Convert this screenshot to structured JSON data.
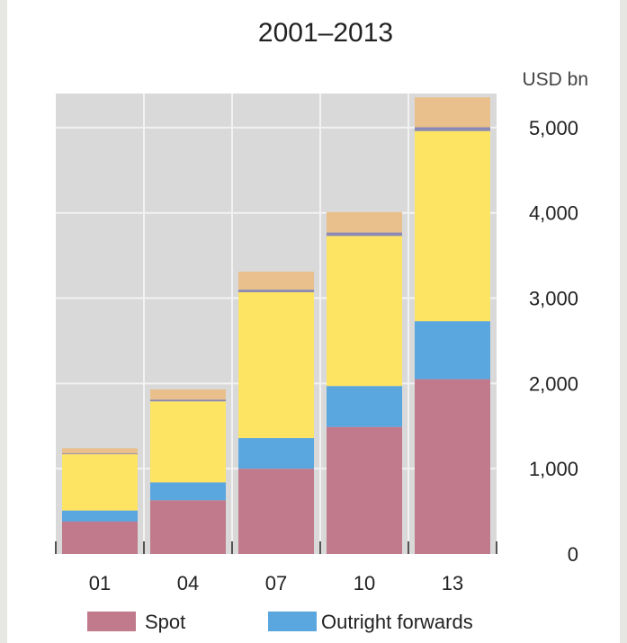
{
  "chart_data": {
    "type": "bar",
    "stacked": true,
    "title": "2001–2013",
    "unit_label": "USD bn",
    "categories": [
      "01",
      "04",
      "07",
      "10",
      "13"
    ],
    "series": [
      {
        "name": "Spot",
        "color": "#c07a8c",
        "values": [
          380,
          630,
          1000,
          1490,
          2050
        ]
      },
      {
        "name": "Outright forwards",
        "color": "#5aa6de",
        "values": [
          130,
          210,
          360,
          480,
          680
        ]
      },
      {
        "color": "#fde463",
        "values": [
          660,
          950,
          1710,
          1760,
          2230
        ]
      },
      {
        "color": "#8b88b3",
        "values": [
          10,
          20,
          30,
          40,
          45
        ]
      },
      {
        "color": "#e9bf8b",
        "values": [
          60,
          120,
          210,
          240,
          350
        ]
      }
    ],
    "y_ticks": [
      {
        "value": 0,
        "label": "0"
      },
      {
        "value": 1000,
        "label": "1,000"
      },
      {
        "value": 2000,
        "label": "2,000"
      },
      {
        "value": 3000,
        "label": "3,000"
      },
      {
        "value": 4000,
        "label": "4,000"
      },
      {
        "value": 5000,
        "label": "5,000"
      }
    ],
    "ylim": [
      0,
      5400
    ],
    "y_axis_position": "right",
    "grid": true,
    "legend_position": "bottom",
    "plot_background": "#d9d9d9"
  }
}
